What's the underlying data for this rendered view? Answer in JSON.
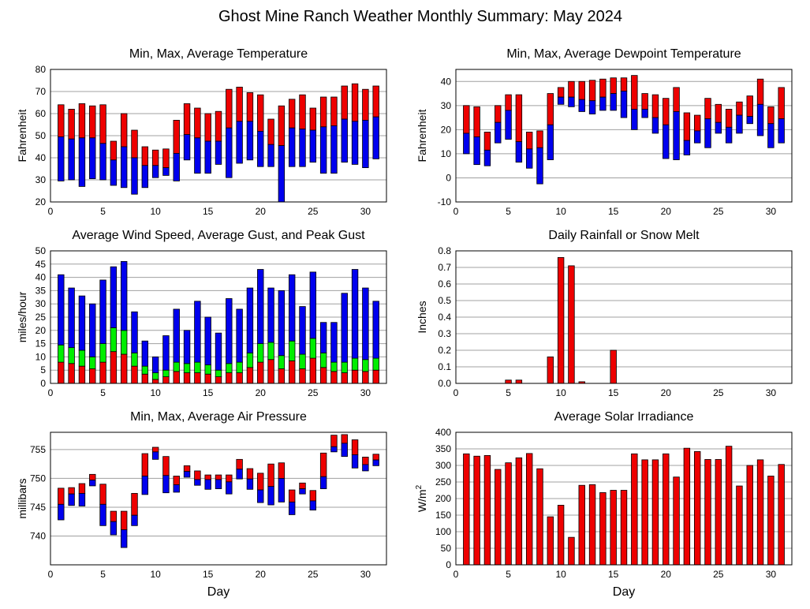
{
  "figure_title": "Ghost Mine Ranch Weather Monthly Summary: May 2024",
  "x_axis_label": "Day",
  "colors": {
    "red": "#ee0000",
    "blue": "#0000ee",
    "green": "#00ee00",
    "grid": "#a0a0a0"
  },
  "chart_data": [
    {
      "id": "temperature",
      "type": "bar",
      "style": "floating-range",
      "title": "Min, Max, Average Temperature",
      "ylabel": "Fahrenheit",
      "xlabel": "",
      "xlim": [
        0,
        32
      ],
      "xticks": [
        0,
        5,
        10,
        15,
        20,
        25,
        30
      ],
      "ylim": [
        20,
        80
      ],
      "yticks": [
        20,
        30,
        40,
        50,
        60,
        70,
        80
      ],
      "yticklabels": [
        "20",
        "30",
        "40",
        "50",
        "60",
        "70",
        "80"
      ],
      "grid": true,
      "x": [
        1,
        2,
        3,
        4,
        5,
        6,
        7,
        8,
        9,
        10,
        11,
        12,
        13,
        14,
        15,
        16,
        17,
        18,
        19,
        20,
        21,
        22,
        23,
        24,
        25,
        26,
        27,
        28,
        29,
        30,
        31
      ],
      "min": [
        29.5,
        30,
        27,
        30.5,
        30,
        27.5,
        26.5,
        23.5,
        26.5,
        31,
        32,
        29.5,
        39,
        33,
        33,
        37,
        31,
        37.5,
        39,
        36,
        36,
        20,
        36,
        36,
        38,
        33,
        33,
        38,
        37,
        35.5,
        39.5
      ],
      "avg": [
        49.5,
        48.5,
        49,
        49,
        46.5,
        39,
        45,
        40,
        36.5,
        36.5,
        35.5,
        42,
        50.5,
        49,
        47.5,
        47.5,
        53.5,
        56.5,
        56.5,
        52,
        46,
        45.5,
        53.5,
        53,
        52.5,
        54,
        54.5,
        57.5,
        56.5,
        57,
        58.5
      ],
      "max": [
        64,
        62,
        64.5,
        63.5,
        64,
        47.5,
        60,
        52.5,
        45,
        43.5,
        44,
        57,
        64.5,
        62.5,
        60,
        61,
        71,
        72,
        69.5,
        68.5,
        57.5,
        63.5,
        66.5,
        68.5,
        62.5,
        67.5,
        67.5,
        72.5,
        73.5,
        71,
        72.5
      ]
    },
    {
      "id": "dewpoint",
      "type": "bar",
      "style": "floating-range",
      "title": "Min, Max, Average Dewpoint Temperature",
      "ylabel": "Fahrenheit",
      "xlabel": "",
      "xlim": [
        0,
        32
      ],
      "xticks": [
        0,
        5,
        10,
        15,
        20,
        25,
        30
      ],
      "ylim": [
        -10,
        45
      ],
      "yticks": [
        -10,
        0,
        10,
        20,
        30,
        40
      ],
      "yticklabels": [
        "-10",
        "0",
        "10",
        "20",
        "30",
        "40"
      ],
      "grid": true,
      "x": [
        1,
        2,
        3,
        4,
        5,
        6,
        7,
        8,
        9,
        10,
        11,
        12,
        13,
        14,
        15,
        16,
        17,
        18,
        19,
        20,
        21,
        22,
        23,
        24,
        25,
        26,
        27,
        28,
        29,
        30,
        31
      ],
      "min": [
        10,
        5.5,
        5,
        14.5,
        16,
        6.5,
        4,
        -2.5,
        7.5,
        30.5,
        29.5,
        27.5,
        26.5,
        28,
        28,
        25,
        20,
        25,
        18.5,
        8,
        7.5,
        9.5,
        14.5,
        12.5,
        18.5,
        14.5,
        18.5,
        22.5,
        17.5,
        12.5,
        14.5
      ],
      "avg": [
        18.5,
        17,
        11.5,
        23,
        28,
        15,
        12,
        12.5,
        22,
        33.5,
        33.5,
        32.5,
        32,
        33.5,
        35,
        36,
        28.5,
        28.5,
        25,
        22,
        27.5,
        15.5,
        19.5,
        24.5,
        23,
        21,
        26,
        25.5,
        30.5,
        22.5,
        24.5
      ],
      "max": [
        30,
        29.5,
        19,
        30,
        34.5,
        34.5,
        19,
        19.5,
        35,
        37.5,
        40,
        40,
        40.5,
        41,
        41.5,
        41.5,
        42.5,
        35,
        34.5,
        33,
        37.5,
        27,
        26,
        33,
        30.5,
        28.5,
        31.5,
        34,
        41,
        29.5,
        37.5
      ]
    },
    {
      "id": "wind",
      "type": "bar",
      "style": "stacked-range",
      "title": "Average Wind Speed, Average Gust, and Peak Gust",
      "ylabel": "miles/hour",
      "xlabel": "",
      "xlim": [
        0,
        32
      ],
      "xticks": [
        0,
        5,
        10,
        15,
        20,
        25,
        30
      ],
      "ylim": [
        0,
        50
      ],
      "yticks": [
        0,
        5,
        10,
        15,
        20,
        25,
        30,
        35,
        40,
        45,
        50
      ],
      "yticklabels": [
        "0",
        "5",
        "10",
        "15",
        "20",
        "25",
        "30",
        "35",
        "40",
        "45",
        "50"
      ],
      "grid": true,
      "x": [
        1,
        2,
        3,
        4,
        5,
        6,
        7,
        8,
        9,
        10,
        11,
        12,
        13,
        14,
        15,
        16,
        17,
        18,
        19,
        20,
        21,
        22,
        23,
        24,
        25,
        26,
        27,
        28,
        29,
        30,
        31
      ],
      "avg_wind": [
        8,
        7.5,
        6.5,
        5.5,
        8,
        12,
        11,
        6.5,
        3.5,
        1.5,
        2.5,
        4.5,
        4,
        4,
        3.5,
        2.5,
        4,
        4,
        6,
        8,
        9,
        5.5,
        8.5,
        5.5,
        9.5,
        6,
        4.5,
        4,
        5,
        4.5,
        5
      ],
      "avg_gust": [
        14.5,
        13.5,
        12.5,
        10,
        15,
        21,
        20,
        11.5,
        6.5,
        4,
        5,
        8,
        7.5,
        8,
        7,
        5,
        7.5,
        8,
        11.5,
        15,
        15.5,
        10.5,
        16,
        11,
        17,
        11.5,
        8,
        8,
        9.5,
        9,
        9.5
      ],
      "peak_gust": [
        41,
        36,
        33,
        30,
        39,
        44,
        46,
        27,
        16,
        10,
        18,
        28,
        20,
        31,
        25,
        19,
        32,
        28,
        36,
        43,
        36,
        35,
        41,
        29,
        42,
        23,
        23,
        34,
        43,
        36,
        31
      ]
    },
    {
      "id": "rainfall",
      "type": "bar",
      "style": "simple",
      "title": "Daily Rainfall or Snow Melt",
      "ylabel": "Inches",
      "xlabel": "",
      "xlim": [
        0,
        32
      ],
      "xticks": [
        0,
        5,
        10,
        15,
        20,
        25,
        30
      ],
      "ylim": [
        0,
        0.8
      ],
      "yticks": [
        0,
        0.1,
        0.2,
        0.3,
        0.4,
        0.5,
        0.6,
        0.7,
        0.8
      ],
      "yticklabels": [
        "0.0",
        "0.1",
        "0.2",
        "0.3",
        "0.4",
        "0.5",
        "0.6",
        "0.7",
        "0.8"
      ],
      "grid": true,
      "x": [
        1,
        2,
        3,
        4,
        5,
        6,
        7,
        8,
        9,
        10,
        11,
        12,
        13,
        14,
        15,
        16,
        17,
        18,
        19,
        20,
        21,
        22,
        23,
        24,
        25,
        26,
        27,
        28,
        29,
        30,
        31
      ],
      "values": [
        0,
        0,
        0,
        0,
        0.02,
        0.02,
        0,
        0,
        0.16,
        0.76,
        0.71,
        0.01,
        0,
        0,
        0.2,
        0,
        0,
        0,
        0,
        0,
        0,
        0,
        0,
        0,
        0,
        0,
        0,
        0,
        0,
        0,
        0
      ]
    },
    {
      "id": "pressure",
      "type": "bar",
      "style": "floating-range",
      "title": "Min, Max, Average Air Pressure",
      "ylabel": "millibars",
      "xlabel": "Day",
      "xlim": [
        0,
        32
      ],
      "xticks": [
        0,
        5,
        10,
        15,
        20,
        25,
        30
      ],
      "ylim": [
        735,
        758
      ],
      "yticks": [
        740,
        745,
        750,
        755
      ],
      "yticklabels": [
        "740",
        "745",
        "750",
        "755"
      ],
      "grid": true,
      "x": [
        1,
        2,
        3,
        4,
        5,
        6,
        7,
        8,
        9,
        10,
        11,
        12,
        13,
        14,
        15,
        16,
        17,
        18,
        19,
        20,
        21,
        22,
        23,
        24,
        25,
        26,
        27,
        28,
        29,
        30,
        31
      ],
      "min": [
        742.8,
        745.3,
        745.2,
        748.7,
        741.8,
        740.2,
        738.0,
        741.8,
        747.2,
        753.3,
        747.5,
        747.6,
        750.2,
        748.8,
        748.1,
        748.2,
        747.3,
        749.9,
        748.1,
        745.8,
        745.4,
        745.9,
        743.7,
        747.3,
        744.5,
        748.2,
        754.6,
        753.8,
        751.8,
        751.3,
        752.2
      ],
      "avg": [
        745.5,
        747.3,
        747.4,
        749.7,
        745.5,
        742.5,
        741.1,
        743.6,
        750.4,
        754.6,
        750.5,
        748.9,
        751.2,
        749.8,
        749.8,
        749.8,
        749.4,
        751.6,
        749.9,
        748.0,
        748.6,
        750.0,
        745.9,
        748.2,
        746.1,
        750.3,
        755.5,
        756.1,
        754.1,
        752.4,
        753.2
      ],
      "max": [
        748.3,
        748.4,
        749.1,
        750.7,
        749.0,
        744.3,
        744.3,
        747.4,
        754.3,
        755.4,
        753.8,
        750.4,
        752.2,
        751.3,
        750.6,
        750.6,
        750.6,
        753.3,
        751.7,
        750.9,
        752.5,
        752.7,
        748.0,
        749.2,
        747.9,
        754.4,
        757.5,
        757.6,
        756.7,
        753.7,
        754.2
      ]
    },
    {
      "id": "solar",
      "type": "bar",
      "style": "simple",
      "title": "Average Solar Irradiance",
      "ylabel": "W/m2",
      "xlabel": "Day",
      "xlim": [
        0,
        32
      ],
      "xticks": [
        0,
        5,
        10,
        15,
        20,
        25,
        30
      ],
      "ylim": [
        0,
        400
      ],
      "yticks": [
        0,
        50,
        100,
        150,
        200,
        250,
        300,
        350,
        400
      ],
      "yticklabels": [
        "0",
        "50",
        "100",
        "150",
        "200",
        "250",
        "300",
        "350",
        "400"
      ],
      "grid": true,
      "x": [
        1,
        2,
        3,
        4,
        5,
        6,
        7,
        8,
        9,
        10,
        11,
        12,
        13,
        14,
        15,
        16,
        17,
        18,
        19,
        20,
        21,
        22,
        23,
        24,
        25,
        26,
        27,
        28,
        29,
        30,
        31
      ],
      "values": [
        335,
        328,
        330,
        288,
        308,
        323,
        336,
        290,
        145,
        180,
        83,
        240,
        242,
        218,
        225,
        225,
        335,
        317,
        317,
        335,
        265,
        352,
        342,
        318,
        318,
        358,
        238,
        300,
        317,
        268,
        303
      ]
    }
  ]
}
